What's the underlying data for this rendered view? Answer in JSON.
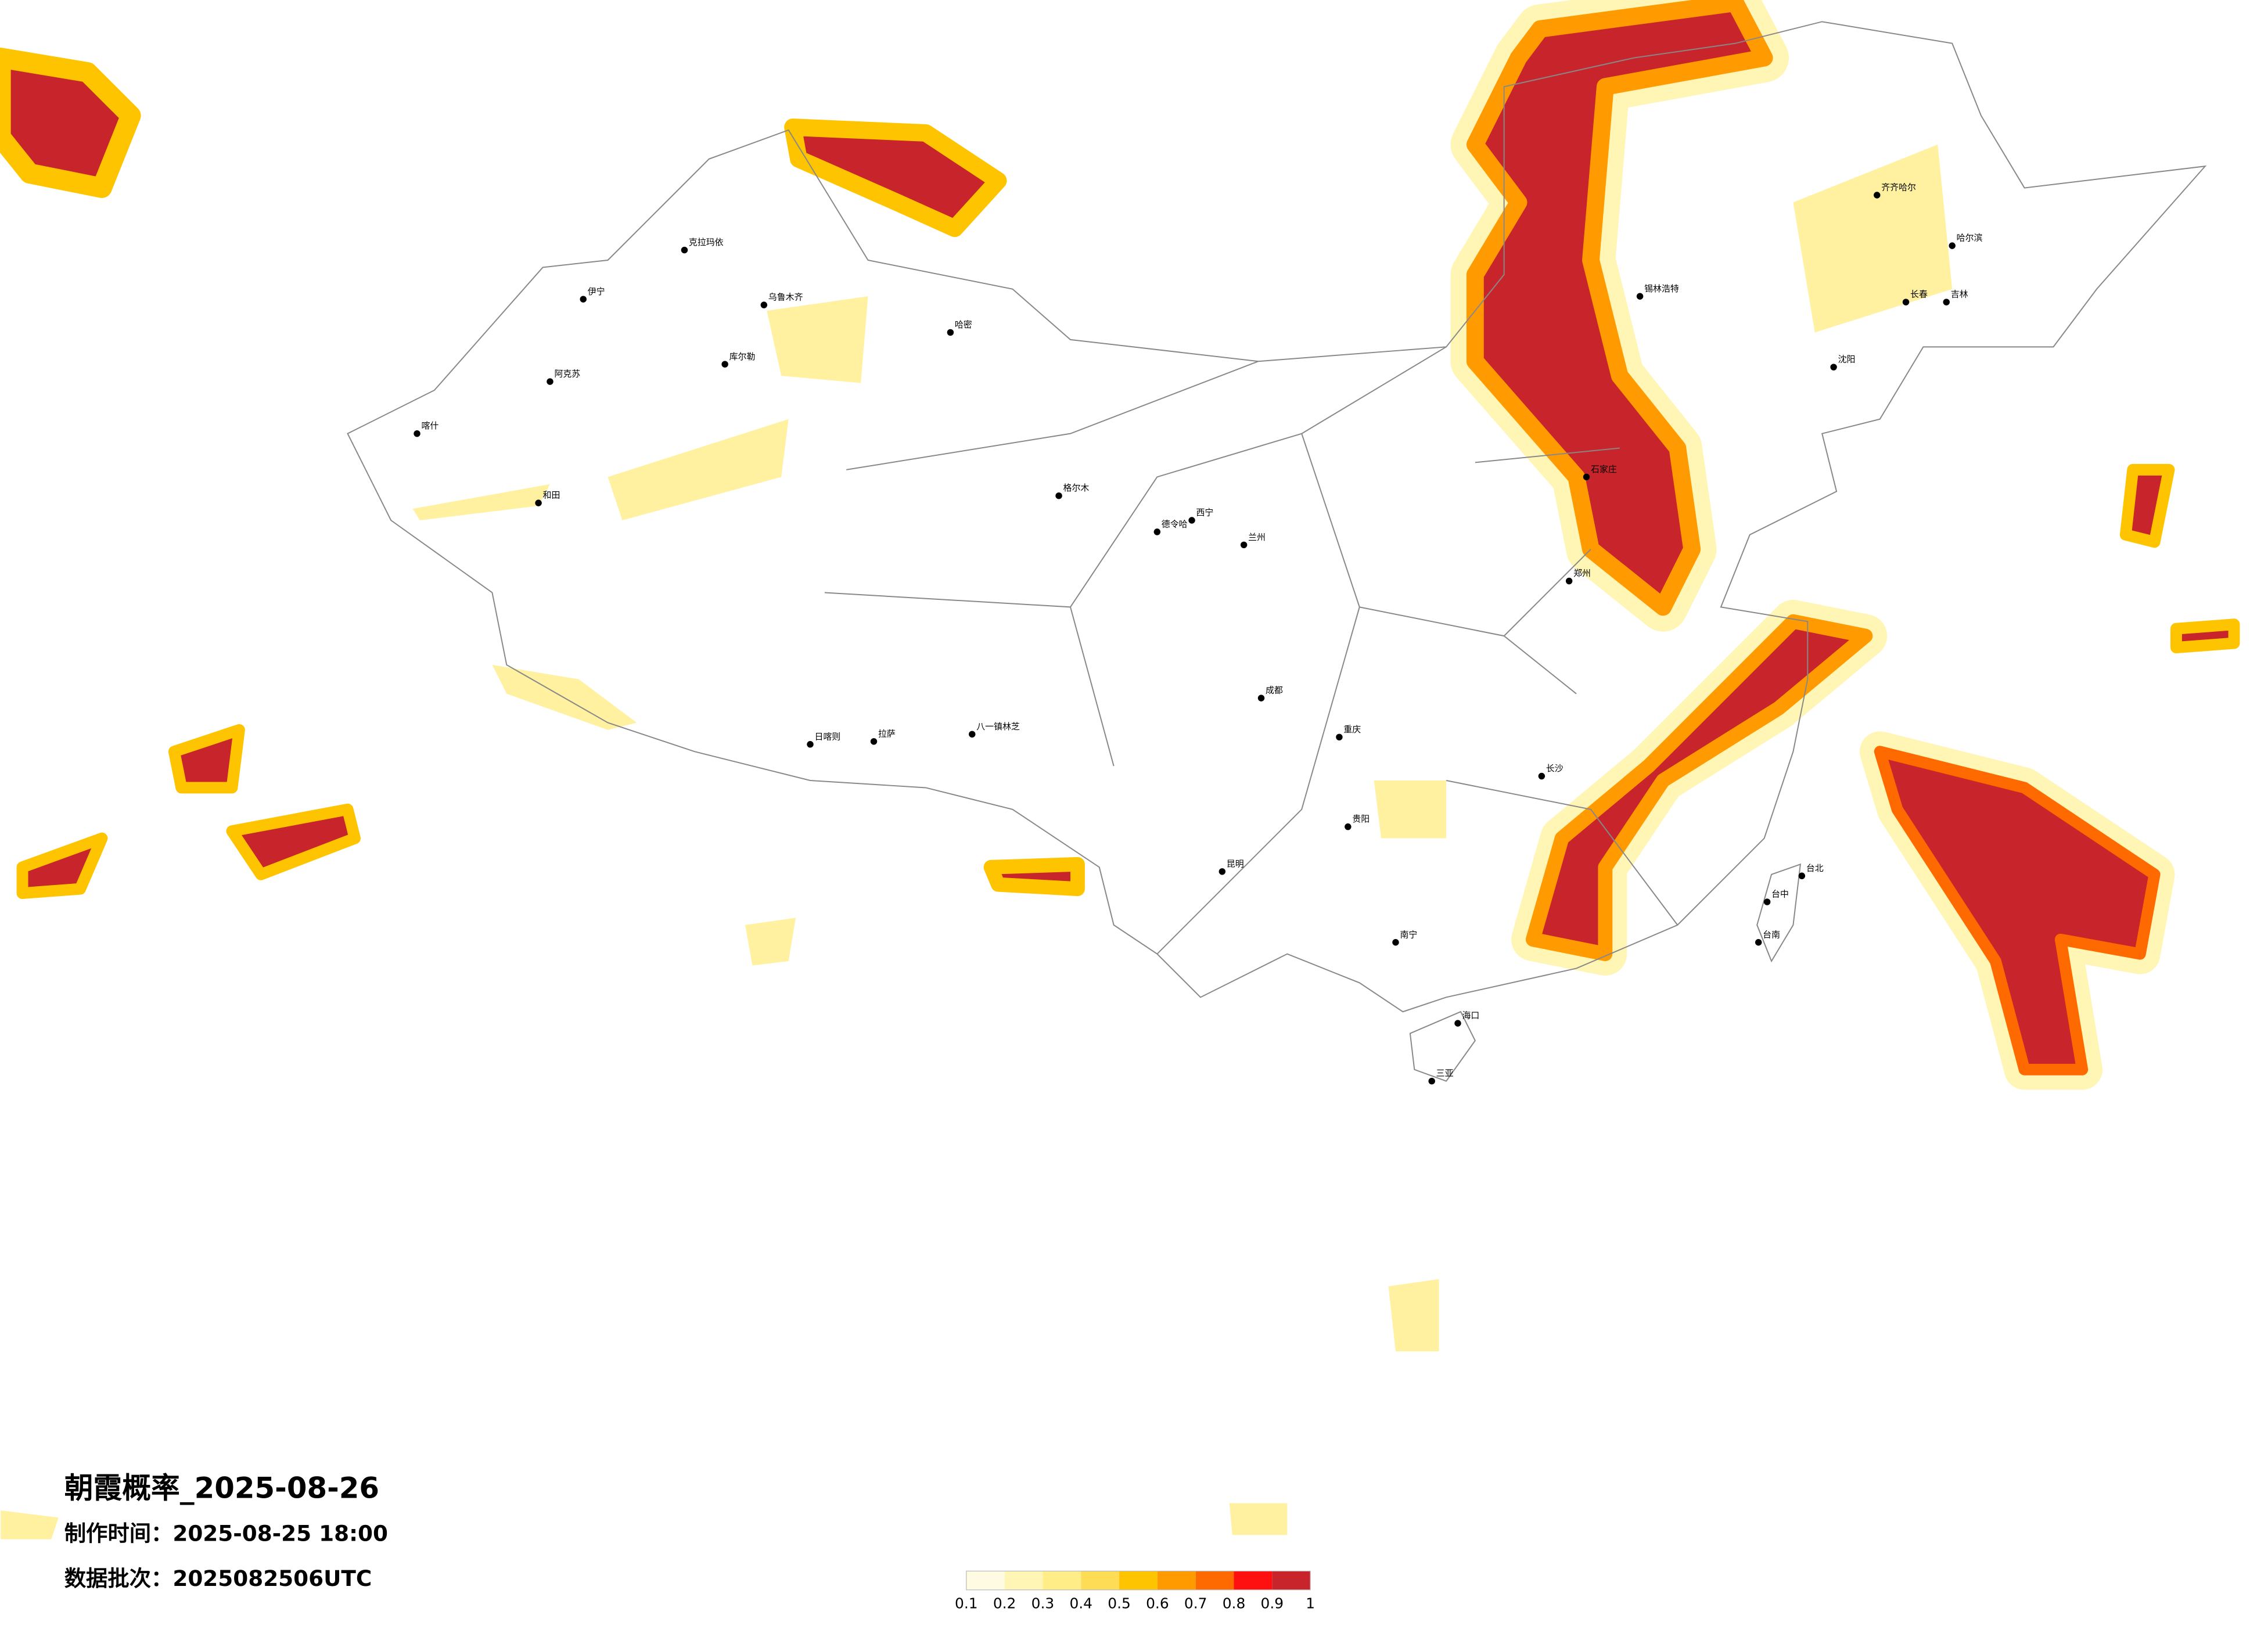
{
  "title": "朝霞概率_2025-08-26",
  "production_time": "制作时间：2025-08-25 18:00",
  "data_batch": "数据批次：2025082506UTC",
  "legend": {
    "ticks": [
      0.1,
      0.2,
      0.3,
      0.4,
      0.5,
      0.6,
      0.7,
      0.8,
      0.9,
      1
    ],
    "colors": [
      "#fffbe3",
      "#fff6b5",
      "#ffee88",
      "#ffdc55",
      "#ffc400",
      "#ff9a00",
      "#ff6a00",
      "#ff1010",
      "#c8242b"
    ]
  },
  "cities": [
    "克拉玛依",
    "伊宁",
    "乌鲁木齐",
    "哈密",
    "库尔勒",
    "阿克苏",
    "喀什",
    "和田",
    "格尔木",
    "德令哈",
    "日喀则",
    "拉萨",
    "八一镇林芝",
    "西宁",
    "兰州",
    "锡林浩特",
    "齐齐哈尔",
    "哈尔滨",
    "长春",
    "吉林",
    "沈阳",
    "石家庄",
    "郑州",
    "长沙",
    "南宁",
    "海口",
    "三亚",
    "台北",
    "台中",
    "台南",
    "昆明",
    "贵阳",
    "重庆",
    "成都"
  ]
}
